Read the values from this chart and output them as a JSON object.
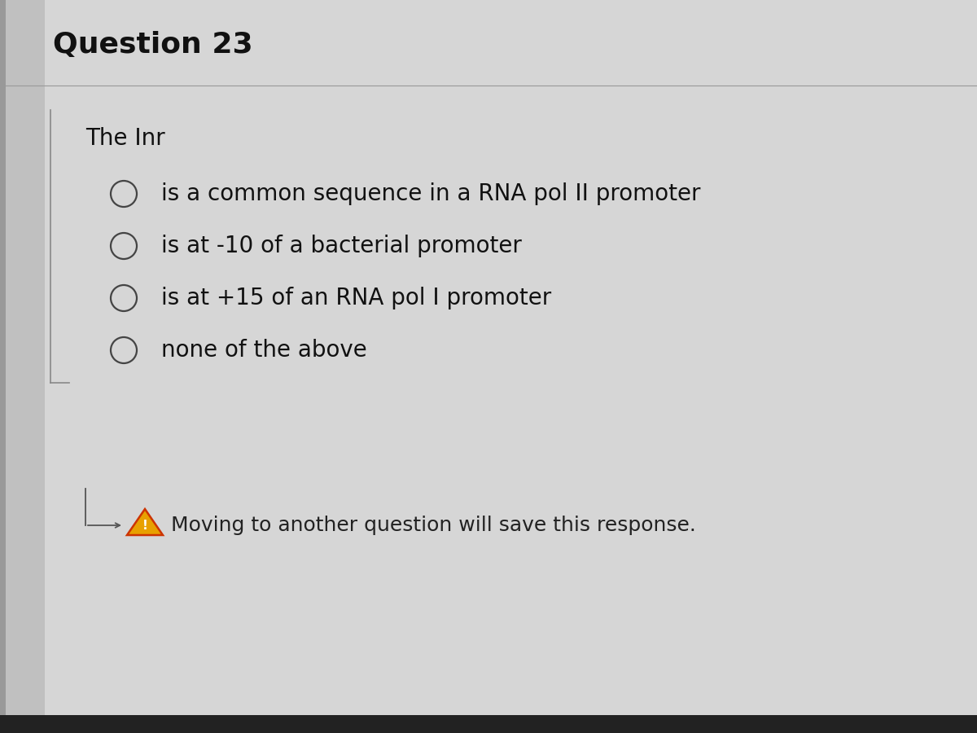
{
  "title": "Question 23",
  "question_text": "The Inr",
  "options": [
    "is a common sequence in a RNA pol II promoter",
    "is at -10 of a bacterial promoter",
    "is at +15 of an RNA pol I promoter",
    "none of the above"
  ],
  "footer_text": "Moving to another question will save this response.",
  "bg_color": "#bebebe",
  "card_color": "#d6d6d6",
  "title_fontsize": 26,
  "question_fontsize": 20,
  "option_fontsize": 20,
  "footer_fontsize": 18,
  "title_color": "#111111",
  "text_color": "#111111",
  "footer_text_color": "#222222",
  "circle_color": "#444444",
  "line_color": "#999999",
  "left_border_color": "#aaaaaa"
}
